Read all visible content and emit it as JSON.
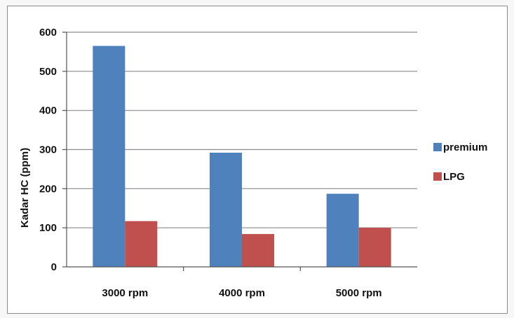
{
  "chart_data": {
    "type": "bar",
    "categories": [
      "3000 rpm",
      "4000 rpm",
      "5000 rpm"
    ],
    "series": [
      {
        "name": "premium",
        "values": [
          565,
          292,
          187
        ],
        "color": "#4f81bd"
      },
      {
        "name": "LPG",
        "values": [
          117,
          84,
          100
        ],
        "color": "#c0504d"
      }
    ],
    "ylabel": "Kadar HC (ppm)",
    "xlabel": "",
    "ylim": [
      0,
      600
    ],
    "yticks": [
      0,
      100,
      200,
      300,
      400,
      500,
      600
    ],
    "grid": true,
    "legend": "right"
  }
}
